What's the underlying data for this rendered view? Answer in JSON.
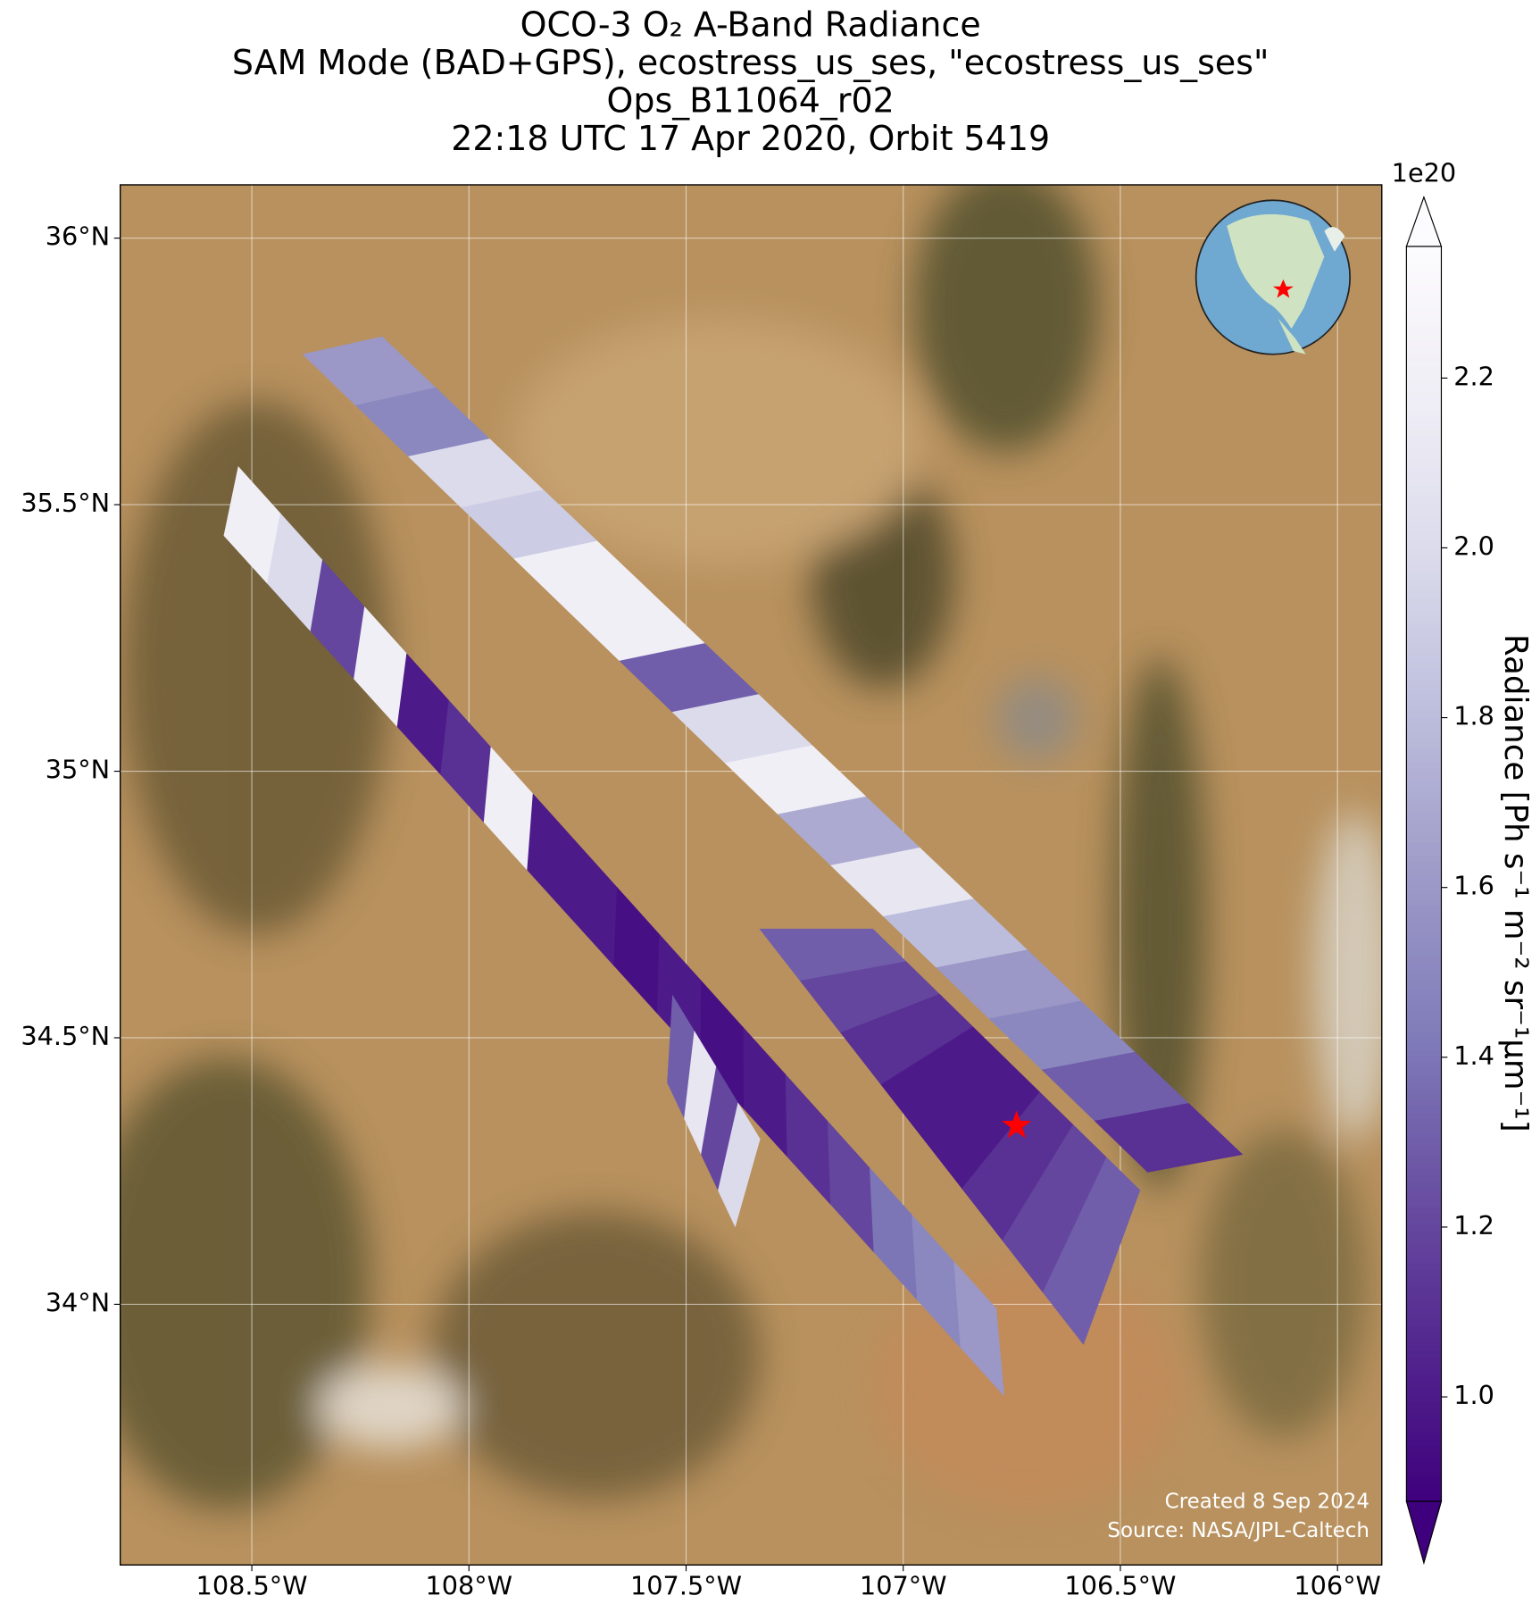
{
  "chart_data": {
    "type": "swath-map",
    "title_lines": [
      "OCO-3 O₂ A-Band Radiance",
      "SAM Mode (BAD+GPS), ecostress_us_ses, \"ecostress_us_ses\"",
      "Ops_B11064_r02",
      "22:18 UTC 17 Apr 2020, Orbit 5419"
    ],
    "xlim": [
      -108.803,
      -105.898
    ],
    "ylim": [
      33.511,
      36.1
    ],
    "xticks": [
      {
        "value": -108.5,
        "label": "108.5°W"
      },
      {
        "value": -108,
        "label": "108°W"
      },
      {
        "value": -107.5,
        "label": "107.5°W"
      },
      {
        "value": -107,
        "label": "107°W"
      },
      {
        "value": -106.5,
        "label": "106.5°W"
      },
      {
        "value": -106,
        "label": "106°W"
      }
    ],
    "yticks": [
      {
        "value": 34,
        "label": "34°N"
      },
      {
        "value": 34.5,
        "label": "34.5°N"
      },
      {
        "value": 35,
        "label": "35°N"
      },
      {
        "value": 35.5,
        "label": "35.5°N"
      },
      {
        "value": 36,
        "label": "36°N"
      }
    ],
    "grid": true,
    "colorbar": {
      "label": "Radiance [Ph s⁻¹ m⁻² sr⁻¹μm⁻¹]",
      "offset_label": "1e20",
      "lim": [
        0.877,
        2.355
      ],
      "ticks": [
        {
          "value": 1.0,
          "label": "1.0"
        },
        1.2,
        1.4,
        1.6,
        1.8,
        {
          "value": 2.0,
          "label": "2.0"
        },
        2.2
      ],
      "colormap": [
        "#fcfbfd",
        "#efedf5",
        "#dadaeb",
        "#bcbddc",
        "#9e9ac8",
        "#807dba",
        "#6a51a3",
        "#54278f",
        "#3f007d"
      ]
    },
    "swaths": [
      {
        "corners": [
          [
            -108.382,
            35.782
          ],
          [
            -108.2,
            35.815
          ],
          [
            -106.219,
            34.281
          ],
          [
            -106.437,
            34.248
          ]
        ],
        "values": [
          1.6,
          1.5,
          2.0,
          1.9,
          2.2,
          2.2,
          1.3,
          2.0,
          2.2,
          1.7,
          2.1,
          1.8,
          1.6,
          1.5,
          1.3,
          1.1
        ]
      },
      {
        "corners": [
          [
            -108.564,
            35.442
          ],
          [
            -108.531,
            35.571
          ],
          [
            -106.786,
            33.992
          ],
          [
            -106.768,
            33.829
          ]
        ],
        "values": [
          2.2,
          2.0,
          1.2,
          2.2,
          1.0,
          1.1,
          2.2,
          1.0,
          1.0,
          0.95,
          1.0,
          0.95,
          1.0,
          1.1,
          1.2,
          1.4,
          1.5,
          1.6
        ]
      },
      {
        "corners": [
          [
            -107.33,
            34.704
          ],
          [
            -107.07,
            34.704
          ],
          [
            -106.455,
            34.214
          ],
          [
            -106.585,
            33.925
          ]
        ],
        "values": [
          1.3,
          1.2,
          1.1,
          1.0,
          1.0,
          1.1,
          1.2,
          1.3
        ]
      },
      {
        "corners": [
          [
            -107.543,
            34.416
          ],
          [
            -107.531,
            34.579
          ],
          [
            -107.33,
            34.31
          ],
          [
            -107.387,
            34.146
          ]
        ],
        "values": [
          1.3,
          2.1,
          1.2,
          2.0
        ]
      }
    ],
    "target": {
      "lon": -106.739,
      "lat": 34.335,
      "color": "#ff0000"
    },
    "credits": [
      "Created 8 Sep 2024",
      "Source: NASA/JPL-Caltech"
    ]
  }
}
